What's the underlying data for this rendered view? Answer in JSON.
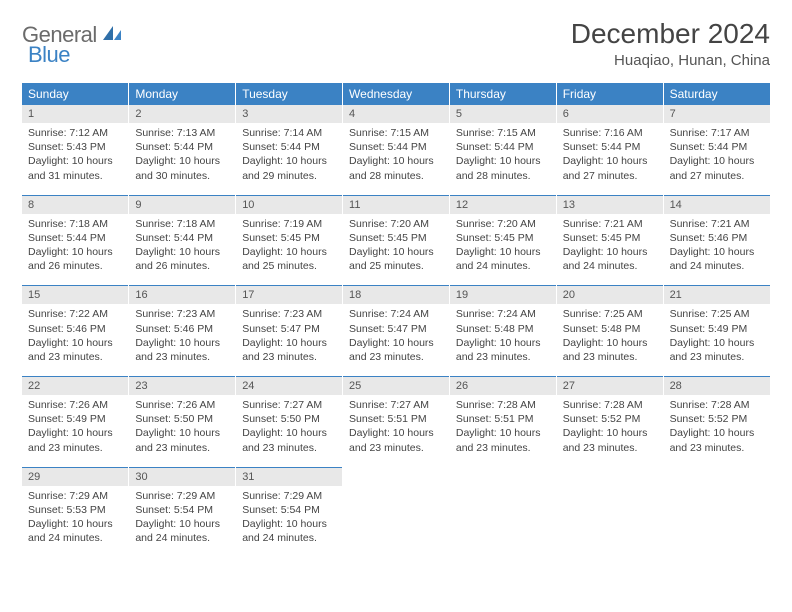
{
  "brand": {
    "name1": "General",
    "name2": "Blue"
  },
  "title": "December 2024",
  "location": "Huaqiao, Hunan, China",
  "colors": {
    "header_bg": "#3b82c4",
    "header_text": "#ffffff",
    "daynum_bg": "#e8e8e8",
    "rule": "#3b82c4",
    "body_text": "#444444"
  },
  "weekdays": [
    "Sunday",
    "Monday",
    "Tuesday",
    "Wednesday",
    "Thursday",
    "Friday",
    "Saturday"
  ],
  "days": [
    {
      "n": 1,
      "sunrise": "7:12 AM",
      "sunset": "5:43 PM",
      "daylight": "10 hours and 31 minutes."
    },
    {
      "n": 2,
      "sunrise": "7:13 AM",
      "sunset": "5:44 PM",
      "daylight": "10 hours and 30 minutes."
    },
    {
      "n": 3,
      "sunrise": "7:14 AM",
      "sunset": "5:44 PM",
      "daylight": "10 hours and 29 minutes."
    },
    {
      "n": 4,
      "sunrise": "7:15 AM",
      "sunset": "5:44 PM",
      "daylight": "10 hours and 28 minutes."
    },
    {
      "n": 5,
      "sunrise": "7:15 AM",
      "sunset": "5:44 PM",
      "daylight": "10 hours and 28 minutes."
    },
    {
      "n": 6,
      "sunrise": "7:16 AM",
      "sunset": "5:44 PM",
      "daylight": "10 hours and 27 minutes."
    },
    {
      "n": 7,
      "sunrise": "7:17 AM",
      "sunset": "5:44 PM",
      "daylight": "10 hours and 27 minutes."
    },
    {
      "n": 8,
      "sunrise": "7:18 AM",
      "sunset": "5:44 PM",
      "daylight": "10 hours and 26 minutes."
    },
    {
      "n": 9,
      "sunrise": "7:18 AM",
      "sunset": "5:44 PM",
      "daylight": "10 hours and 26 minutes."
    },
    {
      "n": 10,
      "sunrise": "7:19 AM",
      "sunset": "5:45 PM",
      "daylight": "10 hours and 25 minutes."
    },
    {
      "n": 11,
      "sunrise": "7:20 AM",
      "sunset": "5:45 PM",
      "daylight": "10 hours and 25 minutes."
    },
    {
      "n": 12,
      "sunrise": "7:20 AM",
      "sunset": "5:45 PM",
      "daylight": "10 hours and 24 minutes."
    },
    {
      "n": 13,
      "sunrise": "7:21 AM",
      "sunset": "5:45 PM",
      "daylight": "10 hours and 24 minutes."
    },
    {
      "n": 14,
      "sunrise": "7:21 AM",
      "sunset": "5:46 PM",
      "daylight": "10 hours and 24 minutes."
    },
    {
      "n": 15,
      "sunrise": "7:22 AM",
      "sunset": "5:46 PM",
      "daylight": "10 hours and 23 minutes."
    },
    {
      "n": 16,
      "sunrise": "7:23 AM",
      "sunset": "5:46 PM",
      "daylight": "10 hours and 23 minutes."
    },
    {
      "n": 17,
      "sunrise": "7:23 AM",
      "sunset": "5:47 PM",
      "daylight": "10 hours and 23 minutes."
    },
    {
      "n": 18,
      "sunrise": "7:24 AM",
      "sunset": "5:47 PM",
      "daylight": "10 hours and 23 minutes."
    },
    {
      "n": 19,
      "sunrise": "7:24 AM",
      "sunset": "5:48 PM",
      "daylight": "10 hours and 23 minutes."
    },
    {
      "n": 20,
      "sunrise": "7:25 AM",
      "sunset": "5:48 PM",
      "daylight": "10 hours and 23 minutes."
    },
    {
      "n": 21,
      "sunrise": "7:25 AM",
      "sunset": "5:49 PM",
      "daylight": "10 hours and 23 minutes."
    },
    {
      "n": 22,
      "sunrise": "7:26 AM",
      "sunset": "5:49 PM",
      "daylight": "10 hours and 23 minutes."
    },
    {
      "n": 23,
      "sunrise": "7:26 AM",
      "sunset": "5:50 PM",
      "daylight": "10 hours and 23 minutes."
    },
    {
      "n": 24,
      "sunrise": "7:27 AM",
      "sunset": "5:50 PM",
      "daylight": "10 hours and 23 minutes."
    },
    {
      "n": 25,
      "sunrise": "7:27 AM",
      "sunset": "5:51 PM",
      "daylight": "10 hours and 23 minutes."
    },
    {
      "n": 26,
      "sunrise": "7:28 AM",
      "sunset": "5:51 PM",
      "daylight": "10 hours and 23 minutes."
    },
    {
      "n": 27,
      "sunrise": "7:28 AM",
      "sunset": "5:52 PM",
      "daylight": "10 hours and 23 minutes."
    },
    {
      "n": 28,
      "sunrise": "7:28 AM",
      "sunset": "5:52 PM",
      "daylight": "10 hours and 23 minutes."
    },
    {
      "n": 29,
      "sunrise": "7:29 AM",
      "sunset": "5:53 PM",
      "daylight": "10 hours and 24 minutes."
    },
    {
      "n": 30,
      "sunrise": "7:29 AM",
      "sunset": "5:54 PM",
      "daylight": "10 hours and 24 minutes."
    },
    {
      "n": 31,
      "sunrise": "7:29 AM",
      "sunset": "5:54 PM",
      "daylight": "10 hours and 24 minutes."
    }
  ],
  "labels": {
    "sunrise": "Sunrise:",
    "sunset": "Sunset:",
    "daylight": "Daylight:"
  },
  "layout": {
    "first_weekday_index": 0,
    "total_cells": 35
  }
}
